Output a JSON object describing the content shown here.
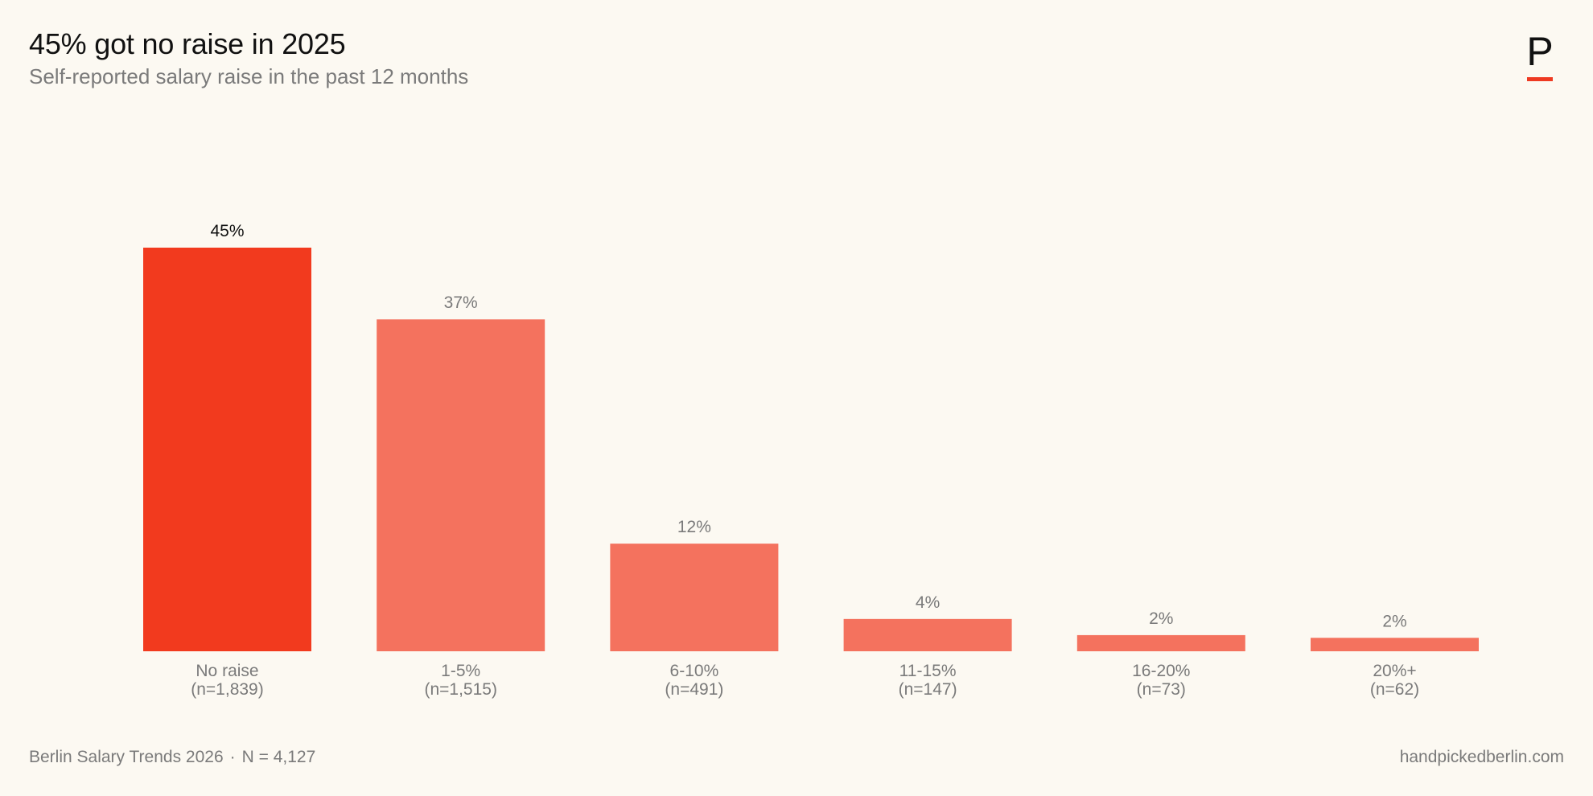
{
  "header": {
    "title": "45% got no raise in 2025",
    "subtitle": "Self-reported salary raise in the past 12 months"
  },
  "logo": {
    "letter": "P",
    "accent_color": "#ee3a22"
  },
  "footer": {
    "source": "Berlin Salary Trends 2026",
    "separator": "·",
    "sample": "N = 4,127",
    "site": "handpickedberlin.com"
  },
  "colors": {
    "highlight": "#f23a1e",
    "bar": "#f4725e",
    "highlight_label": "#111111",
    "label": "#7a7a7a",
    "background": "#fcf9f2"
  },
  "chart_data": {
    "type": "bar",
    "categories": [
      "No raise",
      "1-5%",
      "6-10%",
      "11-15%",
      "16-20%",
      "20%+"
    ],
    "counts": [
      "(n=1,839)",
      "(n=1,515)",
      "(n=491)",
      "(n=147)",
      "(n=73)",
      "(n=62)"
    ],
    "values": [
      45,
      37,
      12,
      3.6,
      1.8,
      1.5
    ],
    "value_labels": [
      "45%",
      "37%",
      "12%",
      "4%",
      "2%",
      "2%"
    ],
    "highlight_index": 0,
    "ylim": [
      0,
      45
    ],
    "grid": false,
    "xlabel": "",
    "ylabel": ""
  }
}
